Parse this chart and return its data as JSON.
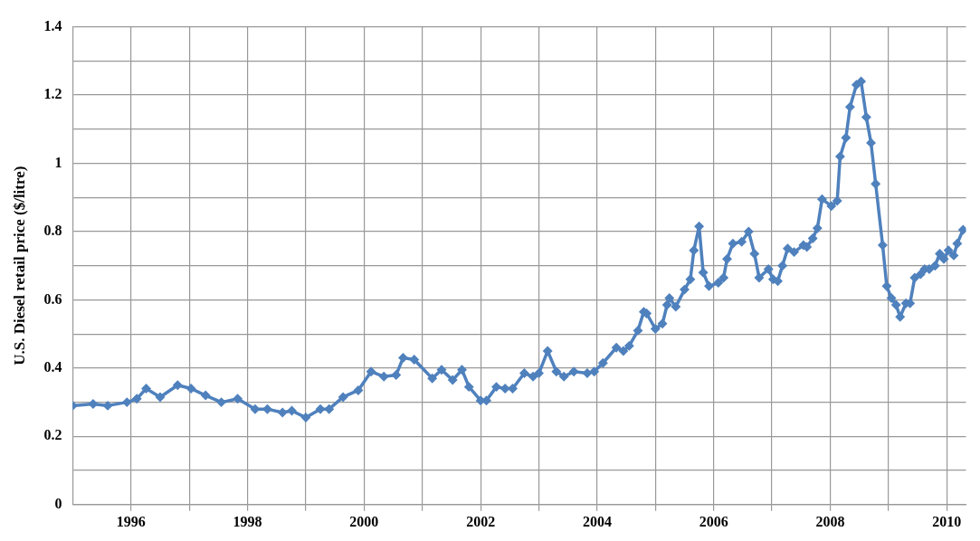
{
  "chart_data": {
    "type": "line",
    "ylabel": "U.S. Diesel retail price ($/litre)",
    "marker": "diamond",
    "grid": true,
    "legend": false,
    "xlim": [
      1995,
      2010.33
    ],
    "ylim": [
      0,
      1.4
    ],
    "xticks": [
      {
        "value": 1996,
        "label": "1996"
      },
      {
        "value": 1997,
        "label": null
      },
      {
        "value": 1998,
        "label": "1998"
      },
      {
        "value": 1999,
        "label": null
      },
      {
        "value": 2000,
        "label": "2000"
      },
      {
        "value": 2001,
        "label": null
      },
      {
        "value": 2002,
        "label": "2002"
      },
      {
        "value": 2003,
        "label": null
      },
      {
        "value": 2004,
        "label": "2004"
      },
      {
        "value": 2005,
        "label": null
      },
      {
        "value": 2006,
        "label": "2006"
      },
      {
        "value": 2007,
        "label": null
      },
      {
        "value": 2008,
        "label": "2008"
      },
      {
        "value": 2009,
        "label": null
      },
      {
        "value": 2010,
        "label": "2010"
      }
    ],
    "yticks": [
      0,
      {
        "value": 0.1,
        "label": null
      },
      0.2,
      {
        "value": 0.3,
        "label": null
      },
      0.4,
      {
        "value": 0.5,
        "label": null
      },
      0.6,
      {
        "value": 0.7,
        "label": null
      },
      0.8,
      {
        "value": 0.9,
        "label": null
      },
      1,
      {
        "value": 1.1,
        "label": null
      },
      1.2,
      {
        "value": 1.3,
        "label": null
      },
      1.4
    ],
    "series": [
      {
        "color": "#4f81bd",
        "x": [
          1995.0,
          1995.35,
          1995.6,
          1995.93,
          1996.1,
          1996.26,
          1996.5,
          1996.8,
          1997.03,
          1997.28,
          1997.55,
          1997.83,
          1998.13,
          1998.34,
          1998.6,
          1998.76,
          1999.0,
          1999.25,
          1999.4,
          1999.64,
          1999.9,
          2000.12,
          2000.34,
          2000.55,
          2000.67,
          2000.86,
          2001.17,
          2001.33,
          2001.52,
          2001.68,
          2001.8,
          2002.0,
          2002.1,
          2002.27,
          2002.42,
          2002.55,
          2002.75,
          2002.9,
          2003.0,
          2003.15,
          2003.3,
          2003.43,
          2003.6,
          2003.83,
          2003.95,
          2004.1,
          2004.33,
          2004.45,
          2004.55,
          2004.7,
          2004.8,
          2004.85,
          2005.0,
          2005.12,
          2005.2,
          2005.24,
          2005.35,
          2005.5,
          2005.6,
          2005.66,
          2005.75,
          2005.82,
          2005.92,
          2006.08,
          2006.17,
          2006.23,
          2006.33,
          2006.48,
          2006.6,
          2006.7,
          2006.78,
          2006.94,
          2007.02,
          2007.1,
          2007.18,
          2007.27,
          2007.38,
          2007.54,
          2007.6,
          2007.7,
          2007.78,
          2007.86,
          2008.02,
          2008.12,
          2008.17,
          2008.27,
          2008.34,
          2008.45,
          2008.53,
          2008.62,
          2008.7,
          2008.78,
          2008.9,
          2008.97,
          2009.05,
          2009.13,
          2009.2,
          2009.3,
          2009.37,
          2009.45,
          2009.55,
          2009.62,
          2009.7,
          2009.8,
          2009.88,
          2009.95,
          2010.03,
          2010.12,
          2010.18,
          2010.28
        ],
        "values": [
          0.29,
          0.295,
          0.29,
          0.3,
          0.31,
          0.34,
          0.315,
          0.35,
          0.34,
          0.32,
          0.3,
          0.31,
          0.28,
          0.28,
          0.27,
          0.275,
          0.255,
          0.28,
          0.28,
          0.315,
          0.335,
          0.39,
          0.375,
          0.38,
          0.43,
          0.425,
          0.37,
          0.395,
          0.365,
          0.395,
          0.345,
          0.305,
          0.305,
          0.345,
          0.34,
          0.34,
          0.385,
          0.375,
          0.385,
          0.45,
          0.39,
          0.375,
          0.39,
          0.385,
          0.39,
          0.415,
          0.46,
          0.45,
          0.465,
          0.51,
          0.565,
          0.56,
          0.515,
          0.53,
          0.585,
          0.605,
          0.58,
          0.63,
          0.66,
          0.745,
          0.815,
          0.68,
          0.64,
          0.65,
          0.665,
          0.72,
          0.765,
          0.77,
          0.8,
          0.735,
          0.665,
          0.69,
          0.66,
          0.655,
          0.7,
          0.75,
          0.74,
          0.76,
          0.755,
          0.78,
          0.81,
          0.895,
          0.875,
          0.89,
          1.02,
          1.075,
          1.165,
          1.23,
          1.24,
          1.135,
          1.06,
          0.94,
          0.76,
          0.64,
          0.605,
          0.585,
          0.55,
          0.59,
          0.59,
          0.665,
          0.675,
          0.69,
          0.69,
          0.7,
          0.735,
          0.72,
          0.745,
          0.73,
          0.765,
          0.805
        ]
      }
    ]
  }
}
